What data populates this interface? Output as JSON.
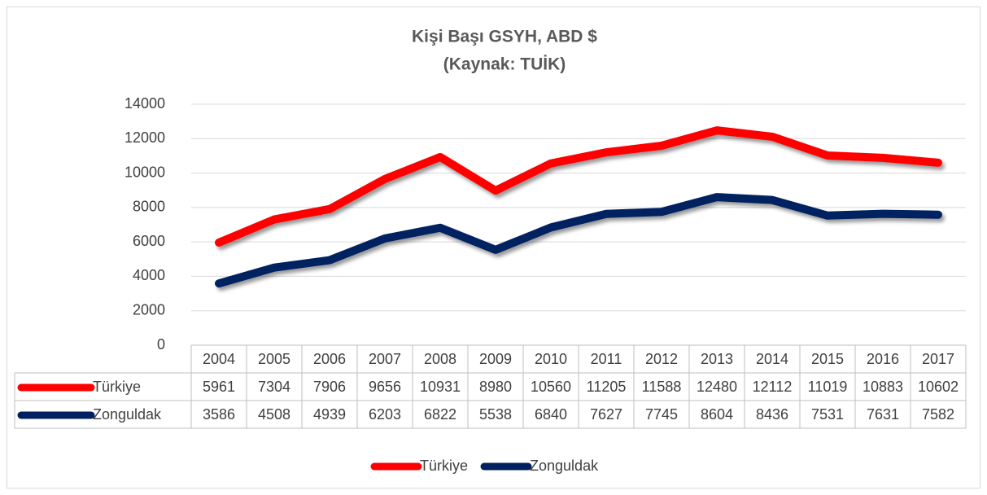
{
  "chart_data": {
    "type": "line",
    "title": "Kişi Başı GSYH, ABD $",
    "subtitle": "(Kaynak: TUİK)",
    "categories": [
      "2004",
      "2005",
      "2006",
      "2007",
      "2008",
      "2009",
      "2010",
      "2011",
      "2012",
      "2013",
      "2014",
      "2015",
      "2016",
      "2017"
    ],
    "series": [
      {
        "name": "Türkiye",
        "color": "#ff0000",
        "values": [
          5961,
          7304,
          7906,
          9656,
          10931,
          8980,
          10560,
          11205,
          11588,
          12480,
          12112,
          11019,
          10883,
          10602
        ]
      },
      {
        "name": "Zonguldak",
        "color": "#002060",
        "values": [
          3586,
          4508,
          4939,
          6203,
          6822,
          5538,
          6840,
          7627,
          7745,
          8604,
          8436,
          7531,
          7631,
          7582
        ]
      }
    ],
    "ylim": [
      0,
      14000
    ],
    "yticks": [
      0,
      2000,
      4000,
      6000,
      8000,
      10000,
      12000,
      14000
    ],
    "grid": true,
    "legend": "bottom"
  }
}
